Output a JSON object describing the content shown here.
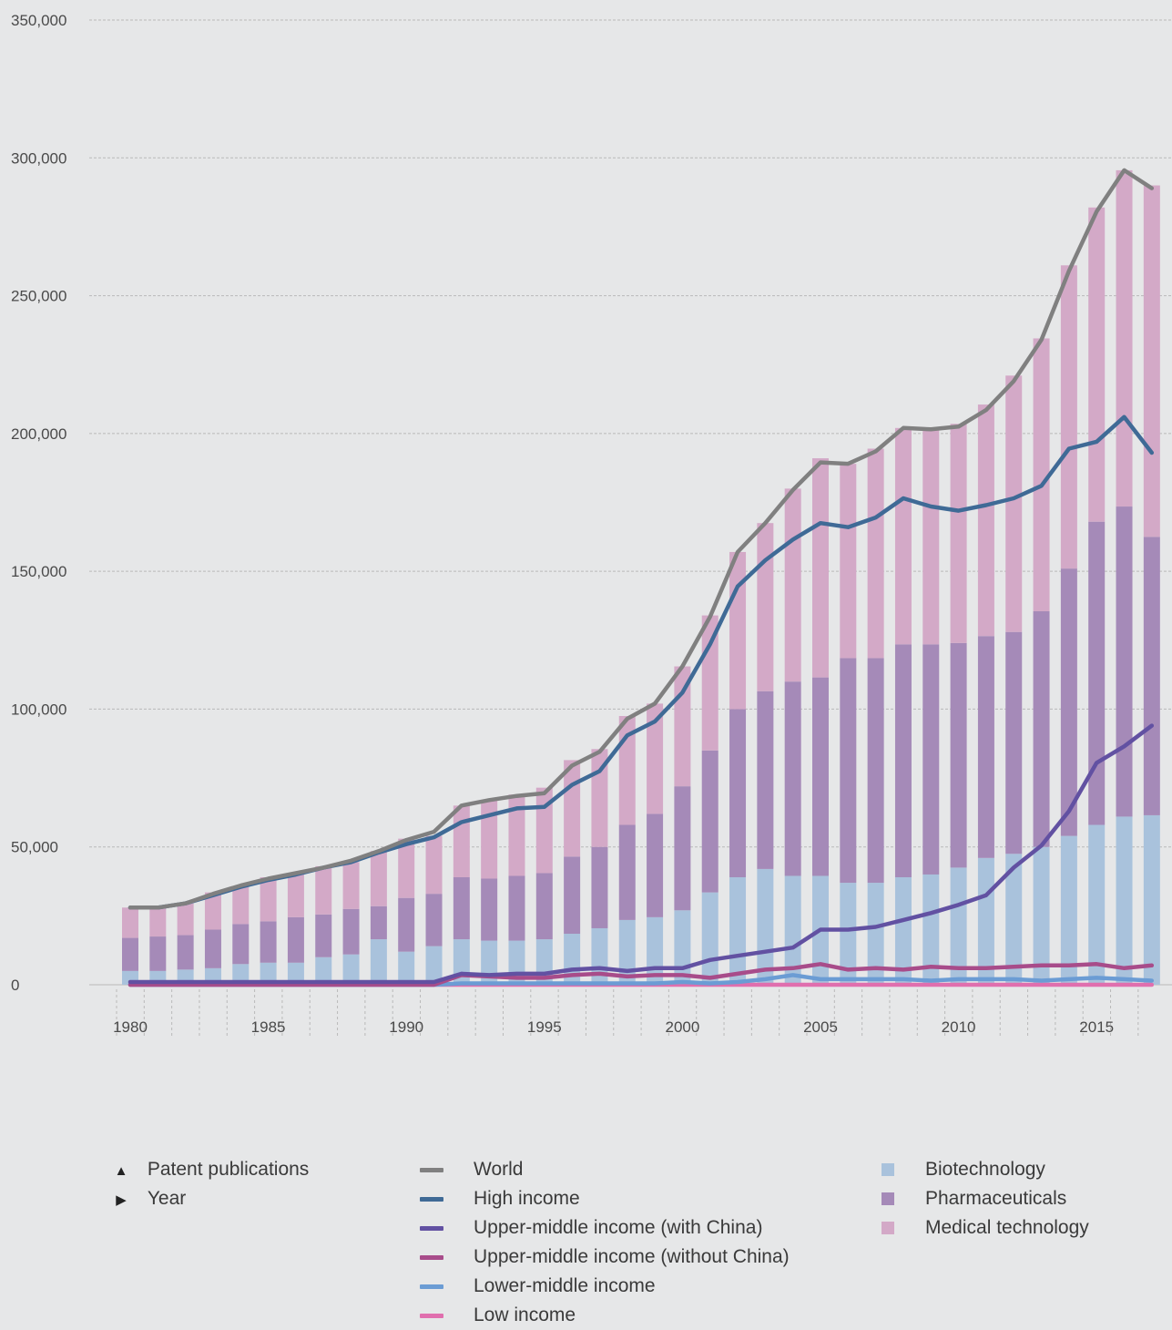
{
  "chart_data": {
    "type": "bar",
    "x": [
      1980,
      1981,
      1982,
      1983,
      1984,
      1985,
      1986,
      1987,
      1988,
      1989,
      1990,
      1991,
      1992,
      1993,
      1994,
      1995,
      1996,
      1997,
      1998,
      1999,
      2000,
      2001,
      2002,
      2003,
      2004,
      2005,
      2006,
      2007,
      2008,
      2009,
      2010,
      2011,
      2012,
      2013,
      2014,
      2015,
      2016,
      2017
    ],
    "x_tick_labels": [
      "1980",
      "1985",
      "1990",
      "1995",
      "2000",
      "2005",
      "2010",
      "2015"
    ],
    "y_tick_labels": [
      "0",
      "50,000",
      "100,000",
      "150,000",
      "200,000",
      "250,000",
      "300,000",
      "350,000"
    ],
    "ylim": [
      0,
      350000
    ],
    "grid": true,
    "stacked_series": [
      {
        "name": "Biotechnology",
        "color": "#a9c2dc",
        "values": [
          5000,
          5000,
          5500,
          6000,
          7500,
          8000,
          8000,
          10000,
          11000,
          16500,
          12000,
          14000,
          16500,
          16000,
          16000,
          16500,
          18500,
          20500,
          23500,
          24500,
          27000,
          33500,
          39000,
          42000,
          39500,
          39500,
          37000,
          37000,
          39000,
          40000,
          42500,
          46000,
          47500,
          50000,
          54000,
          58000,
          61000,
          61500
        ]
      },
      {
        "name": "Pharmaceuticals",
        "color": "#a58ab8",
        "values": [
          12000,
          12500,
          12500,
          14000,
          14500,
          15000,
          16500,
          15500,
          16500,
          12000,
          19500,
          19000,
          22500,
          22500,
          23500,
          24000,
          28000,
          29500,
          34500,
          37500,
          45000,
          51500,
          61000,
          64500,
          70500,
          72000,
          81500,
          81500,
          84500,
          83500,
          81500,
          80500,
          80500,
          85500,
          97000,
          110000,
          112500,
          101000
        ]
      },
      {
        "name": "Medical technology",
        "color": "#d3a9c7",
        "values": [
          11000,
          10500,
          11500,
          13500,
          13500,
          16000,
          15500,
          17500,
          17000,
          20000,
          21500,
          21000,
          26000,
          28500,
          29500,
          31000,
          35000,
          35500,
          39500,
          40000,
          43500,
          49000,
          57000,
          61000,
          70000,
          79500,
          70500,
          76000,
          78500,
          78000,
          79500,
          84000,
          93000,
          99000,
          110000,
          114000,
          122000,
          127500
        ]
      }
    ],
    "line_series": [
      {
        "name": "World",
        "color": "#808080",
        "values": [
          28000,
          28000,
          29500,
          33000,
          36000,
          38500,
          40500,
          42500,
          45000,
          48500,
          52500,
          55500,
          65000,
          67000,
          68500,
          69500,
          79500,
          84500,
          96500,
          102000,
          115500,
          133500,
          157000,
          167500,
          179500,
          189500,
          189000,
          193500,
          202000,
          201500,
          202500,
          208500,
          219000,
          234000,
          259000,
          280500,
          295500,
          289000
        ]
      },
      {
        "name": "High income",
        "color": "#3f6a96",
        "values": [
          28000,
          28000,
          29500,
          32500,
          35500,
          38000,
          40000,
          42500,
          44500,
          48000,
          51000,
          53500,
          59000,
          61500,
          64000,
          64500,
          72500,
          77500,
          90500,
          95500,
          106000,
          123500,
          144500,
          154000,
          161500,
          167500,
          166000,
          169500,
          176500,
          173500,
          172000,
          174000,
          176500,
          181000,
          194500,
          197000,
          206000,
          193000
        ]
      },
      {
        "name": "Upper-middle income (with China)",
        "color": "#6251a2",
        "values": [
          1000,
          1000,
          1000,
          1000,
          1000,
          1000,
          1000,
          1000,
          1000,
          1000,
          1000,
          1000,
          4000,
          3500,
          4000,
          4000,
          5500,
          6000,
          5000,
          6000,
          6000,
          9000,
          10500,
          12000,
          13500,
          20000,
          20000,
          21000,
          23500,
          26000,
          29000,
          32500,
          42500,
          50500,
          63000,
          80500,
          86500,
          94000
        ]
      },
      {
        "name": "Upper-middle income (without China)",
        "color": "#a84c8a",
        "values": [
          0,
          0,
          0,
          0,
          0,
          0,
          0,
          0,
          0,
          0,
          0,
          0,
          3500,
          3000,
          2500,
          2500,
          3500,
          4000,
          3000,
          3500,
          3500,
          2500,
          4000,
          5500,
          6000,
          7500,
          5500,
          6000,
          5500,
          6500,
          6000,
          6000,
          6500,
          7000,
          7000,
          7500,
          6000,
          7000
        ]
      },
      {
        "name": "Lower-middle income",
        "color": "#6b9cd4",
        "values": [
          0,
          0,
          0,
          0,
          0,
          0,
          0,
          0,
          0,
          0,
          0,
          0,
          500,
          500,
          500,
          500,
          500,
          500,
          500,
          500,
          1000,
          500,
          1000,
          2000,
          3500,
          2000,
          2000,
          2000,
          2000,
          1500,
          2000,
          2000,
          2000,
          1500,
          2000,
          2500,
          2000,
          1500
        ]
      },
      {
        "name": "Low income",
        "color": "#e06fae",
        "values": [
          0,
          0,
          0,
          0,
          0,
          0,
          0,
          0,
          0,
          0,
          0,
          0,
          0,
          0,
          0,
          0,
          0,
          0,
          0,
          0,
          0,
          0,
          0,
          0,
          0,
          0,
          0,
          0,
          0,
          0,
          0,
          0,
          0,
          0,
          0,
          0,
          0,
          0
        ]
      }
    ]
  },
  "legend": {
    "axes": [
      {
        "marker": "▲",
        "label": "Patent publications"
      },
      {
        "marker": "▶",
        "label": "Year"
      }
    ],
    "lines": [
      {
        "label": "World",
        "color": "#808080"
      },
      {
        "label": "High income",
        "color": "#3f6a96"
      },
      {
        "label": "Upper-middle income (with China)",
        "color": "#6251a2"
      },
      {
        "label": "Upper-middle income (without China)",
        "color": "#a84c8a"
      },
      {
        "label": "Lower-middle income",
        "color": "#6b9cd4"
      },
      {
        "label": "Low income",
        "color": "#e06fae"
      }
    ],
    "bars": [
      {
        "label": "Biotechnology",
        "color": "#a9c2dc"
      },
      {
        "label": "Pharmaceuticals",
        "color": "#a58ab8"
      },
      {
        "label": "Medical technology",
        "color": "#d3a9c7"
      }
    ]
  }
}
